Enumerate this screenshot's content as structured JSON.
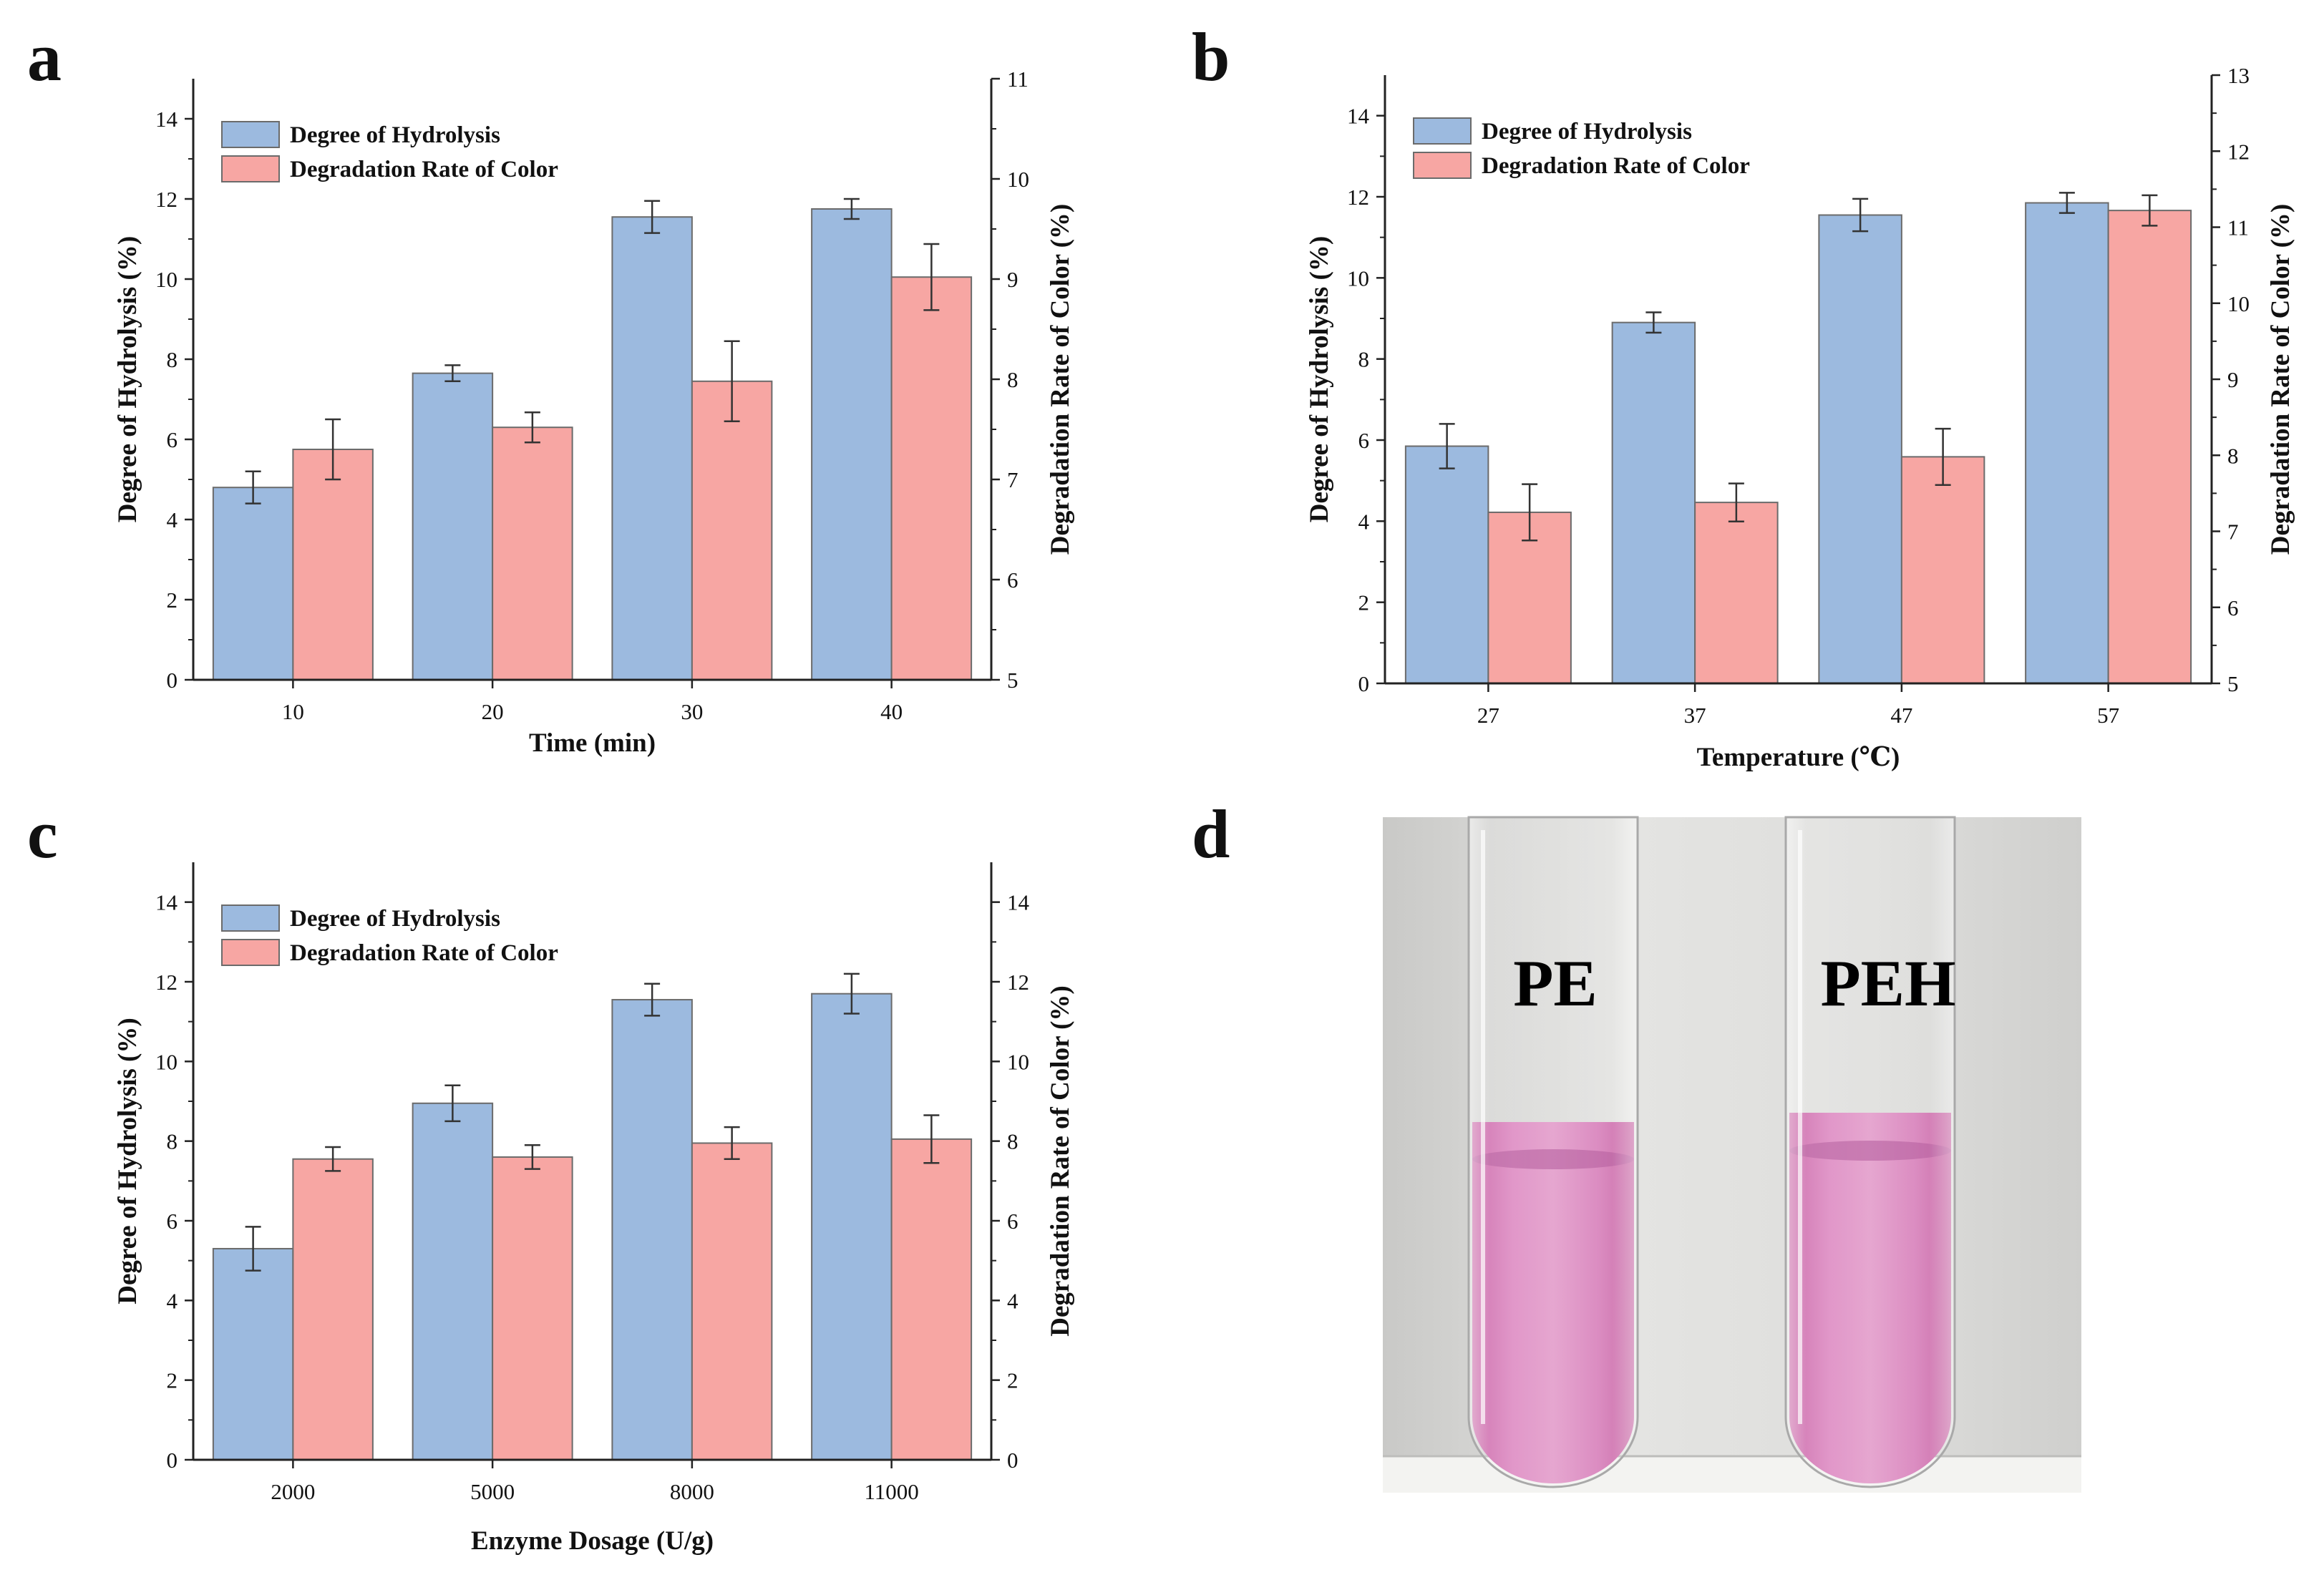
{
  "panels": {
    "a": "a",
    "b": "b",
    "c": "c",
    "d": "d"
  },
  "colors": {
    "hydrolysis": "#9cbadf",
    "color_degradation": "#f7a6a3",
    "bar_stroke": "#6b6b6b"
  },
  "chart_data": [
    {
      "panel": "a",
      "type": "bar",
      "categories": [
        "10",
        "20",
        "30",
        "40"
      ],
      "xlabel": "Time (min)",
      "ylabel": "Degree of Hydrolysis (%)",
      "y2label": "Degradation Rate of Color (%)",
      "ylim": [
        0,
        15
      ],
      "yticks": [
        0,
        2,
        4,
        6,
        8,
        10,
        12,
        14
      ],
      "y2lim": [
        5,
        11
      ],
      "y2ticks": [
        5,
        6,
        7,
        8,
        9,
        10,
        11
      ],
      "legend": [
        "Degree of Hydrolysis",
        "Degradation Rate of Color"
      ],
      "legend_position": "top-left",
      "series": [
        {
          "name": "Degree of Hydrolysis",
          "axis": "left",
          "values": [
            4.8,
            7.65,
            11.55,
            11.75
          ],
          "errors": [
            0.4,
            0.2,
            0.4,
            0.25
          ]
        },
        {
          "name": "Degradation Rate of Color",
          "axis": "right",
          "values": [
            7.3,
            7.52,
            7.98,
            9.02
          ],
          "errors": [
            0.3,
            0.15,
            0.4,
            0.33
          ]
        }
      ]
    },
    {
      "panel": "b",
      "type": "bar",
      "categories": [
        "27",
        "37",
        "47",
        "57"
      ],
      "xlabel": "Temperature (℃)",
      "ylabel": "Degree of  Hydrolysis (%)",
      "y2label": "Degradation Rate of Color (%)",
      "ylim": [
        0,
        15
      ],
      "yticks": [
        0,
        2,
        4,
        6,
        8,
        10,
        12,
        14
      ],
      "y2lim": [
        5,
        13
      ],
      "y2ticks": [
        5,
        6,
        7,
        8,
        9,
        10,
        11,
        12,
        13
      ],
      "legend": [
        "Degree of Hydrolysis",
        "Degradation Rate of Color"
      ],
      "legend_position": "top-left",
      "series": [
        {
          "name": "Degree of Hydrolysis",
          "axis": "left",
          "values": [
            5.85,
            8.9,
            11.55,
            11.85
          ],
          "errors": [
            0.55,
            0.25,
            0.4,
            0.25
          ]
        },
        {
          "name": "Degradation Rate of Color",
          "axis": "right",
          "values": [
            7.25,
            7.38,
            7.98,
            11.22
          ],
          "errors": [
            0.37,
            0.25,
            0.37,
            0.2
          ]
        }
      ]
    },
    {
      "panel": "c",
      "type": "bar",
      "categories": [
        "2000",
        "5000",
        "8000",
        "11000"
      ],
      "xlabel": "Enzyme Dosage (U/g)",
      "ylabel": "Degree of Hydrolysis (%)",
      "y2label": "Degradation Rate of Color (%)",
      "ylim": [
        0,
        15
      ],
      "yticks": [
        0,
        2,
        4,
        6,
        8,
        10,
        12,
        14
      ],
      "y2lim": [
        0,
        15
      ],
      "y2ticks": [
        0,
        2,
        4,
        6,
        8,
        10,
        12,
        14
      ],
      "legend": [
        "Degree of Hydrolysis",
        "Degradation Rate of Color"
      ],
      "legend_position": "top-left",
      "series": [
        {
          "name": "Degree of Hydrolysis",
          "axis": "left",
          "values": [
            5.3,
            8.95,
            11.55,
            11.7
          ],
          "errors": [
            0.55,
            0.45,
            0.4,
            0.5
          ]
        },
        {
          "name": "Degradation Rate of Color",
          "axis": "right",
          "values": [
            7.55,
            7.6,
            7.95,
            8.05
          ],
          "errors": [
            0.3,
            0.3,
            0.4,
            0.6
          ]
        }
      ]
    }
  ],
  "photo": {
    "labels": [
      "PE",
      "PEH"
    ]
  }
}
